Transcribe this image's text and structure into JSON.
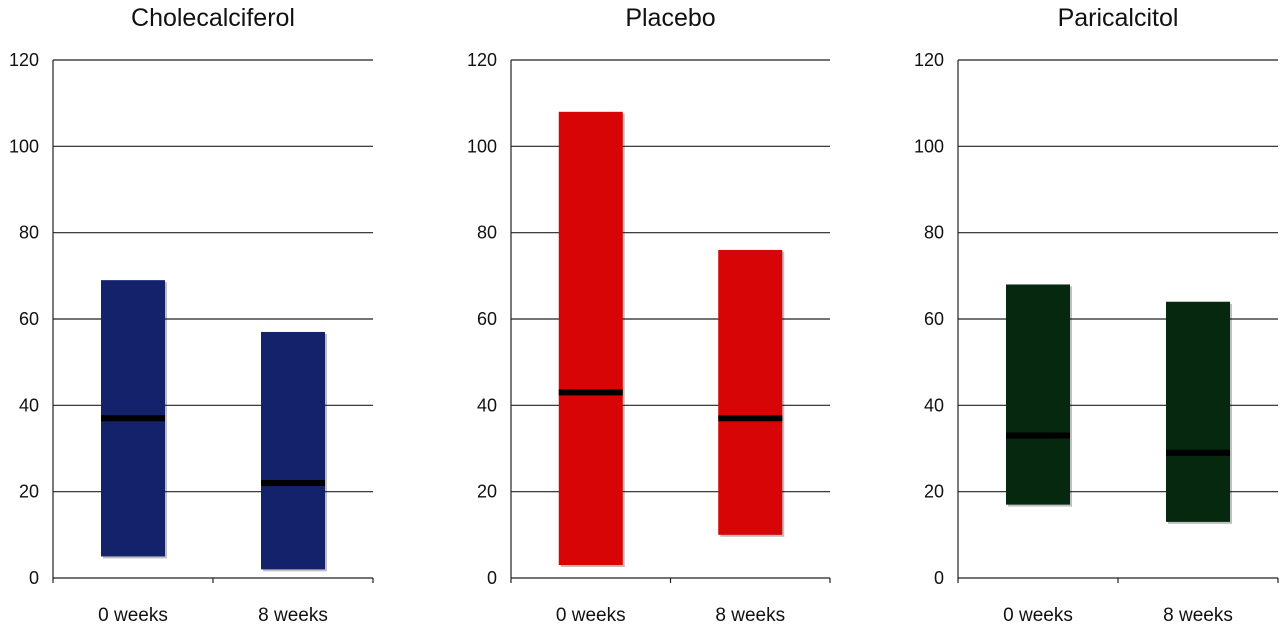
{
  "chart_data": [
    {
      "type": "bar",
      "title": "Cholecalciferol",
      "categories": [
        "0 weeks",
        "8 weeks"
      ],
      "ylim": [
        0,
        120
      ],
      "yticks": [
        "0",
        "20",
        "40",
        "60",
        "80",
        "100",
        "120"
      ],
      "grid": true,
      "color": "#14216b",
      "bars": [
        {
          "low": 5,
          "high": 69,
          "median": 37
        },
        {
          "low": 2,
          "high": 57,
          "median": 22
        }
      ]
    },
    {
      "type": "bar",
      "title": "Placebo",
      "categories": [
        "0 weeks",
        "8 weeks"
      ],
      "ylim": [
        0,
        120
      ],
      "yticks": [
        "0",
        "20",
        "40",
        "60",
        "80",
        "100",
        "120"
      ],
      "grid": true,
      "color": "#d70505",
      "bars": [
        {
          "low": 3,
          "high": 108,
          "median": 43
        },
        {
          "low": 10,
          "high": 76,
          "median": 37
        }
      ]
    },
    {
      "type": "bar",
      "title": "Paricalcitol",
      "categories": [
        "0 weeks",
        "8 weeks"
      ],
      "ylim": [
        0,
        120
      ],
      "yticks": [
        "0",
        "20",
        "40",
        "60",
        "80",
        "100",
        "120"
      ],
      "grid": true,
      "color": "#06280e",
      "bars": [
        {
          "low": 17,
          "high": 68,
          "median": 33
        },
        {
          "low": 13,
          "high": 64,
          "median": 29
        }
      ]
    }
  ]
}
